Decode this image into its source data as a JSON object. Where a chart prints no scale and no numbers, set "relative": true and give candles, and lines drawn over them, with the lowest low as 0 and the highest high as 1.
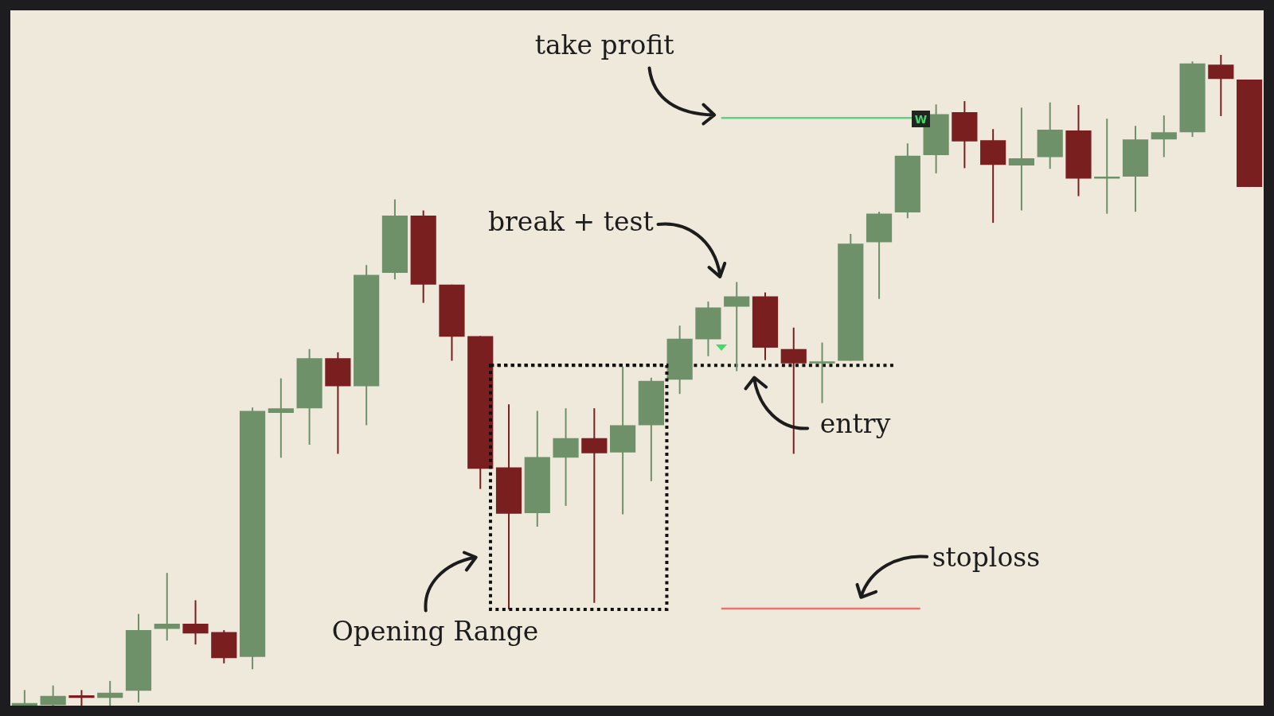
{
  "chart_data": {
    "type": "candlestick",
    "relative": true,
    "categories": [
      null,
      null,
      null,
      null,
      null,
      null,
      null,
      null,
      null,
      null,
      null,
      null,
      null,
      null,
      null,
      null,
      null,
      null,
      null,
      null,
      null,
      null,
      null,
      null,
      null,
      null,
      null,
      null,
      null,
      null,
      null,
      null,
      null,
      null,
      null,
      null,
      null,
      null,
      null,
      null,
      null,
      null,
      null,
      null
    ],
    "ohlc": [
      [
        0,
        0.024,
        0,
        0.004
      ],
      [
        0.001,
        0.031,
        0,
        0.015
      ],
      [
        0.016,
        0.024,
        0,
        0.012
      ],
      [
        0.012,
        0.038,
        0,
        0.02
      ],
      [
        0.023,
        0.141,
        0.005,
        0.116
      ],
      [
        0.118,
        0.204,
        0.1,
        0.126
      ],
      [
        0.126,
        0.162,
        0.094,
        0.111
      ],
      [
        0.113,
        0.116,
        0.065,
        0.073
      ],
      [
        0.075,
        0.458,
        0.056,
        0.453
      ],
      [
        0.45,
        0.503,
        0.381,
        0.457
      ],
      [
        0.457,
        0.548,
        0.401,
        0.534
      ],
      [
        0.534,
        0.543,
        0.387,
        0.491
      ],
      [
        0.491,
        0.677,
        0.431,
        0.662
      ],
      [
        0.665,
        0.778,
        0.655,
        0.753
      ],
      [
        0.753,
        0.761,
        0.619,
        0.647
      ],
      [
        0.647,
        0.647,
        0.53,
        0.567
      ],
      [
        0.568,
        0.568,
        0.333,
        0.364
      ],
      [
        0.366,
        0.463,
        0.148,
        0.295
      ],
      [
        0.296,
        0.453,
        0.275,
        0.382
      ],
      [
        0.381,
        0.457,
        0.307,
        0.411
      ],
      [
        0.411,
        0.457,
        0.158,
        0.388
      ],
      [
        0.389,
        0.521,
        0.294,
        0.431
      ],
      [
        0.431,
        0.504,
        0.345,
        0.499
      ],
      [
        0.501,
        0.584,
        0.479,
        0.564
      ],
      [
        0.563,
        0.621,
        0.537,
        0.612
      ],
      [
        0.613,
        0.651,
        0.514,
        0.629
      ],
      [
        0.629,
        0.635,
        0.531,
        0.55
      ],
      [
        0.548,
        0.581,
        0.387,
        0.526
      ],
      [
        0.526,
        0.558,
        0.465,
        0.529
      ],
      [
        0.53,
        0.725,
        0.53,
        0.71
      ],
      [
        0.712,
        0.759,
        0.625,
        0.756
      ],
      [
        0.758,
        0.864,
        0.749,
        0.845
      ],
      [
        0.846,
        0.924,
        0.818,
        0.909
      ],
      [
        0.912,
        0.929,
        0.826,
        0.867
      ],
      [
        0.869,
        0.886,
        0.742,
        0.831
      ],
      [
        0.83,
        0.919,
        0.761,
        0.841
      ],
      [
        0.843,
        0.927,
        0.825,
        0.885
      ],
      [
        0.884,
        0.923,
        0.783,
        0.81
      ],
      [
        0.81,
        0.902,
        0.756,
        0.813
      ],
      [
        0.813,
        0.891,
        0.759,
        0.87
      ],
      [
        0.87,
        0.907,
        0.843,
        0.881
      ],
      [
        0.881,
        0.99,
        0.874,
        0.987
      ],
      [
        0.985,
        1.0,
        0.906,
        0.963
      ],
      [
        0.962,
        0.962,
        0.797,
        0.797
      ]
    ],
    "colors": [
      "#6e9169",
      "#6e9169",
      "#7a1f1f",
      "#6e9169",
      "#6e9169",
      "#6e9169",
      "#7a1f1f",
      "#7a1f1f",
      "#6e9169",
      "#6e9169",
      "#6e9169",
      "#7a1f1f",
      "#6e9169",
      "#6e9169",
      "#7a1f1f",
      "#7a1f1f",
      "#7a1f1f",
      "#7a1f1f",
      "#6e9169",
      "#6e9169",
      "#7a1f1f",
      "#6e9169",
      "#6e9169",
      "#6e9169",
      "#6e9169",
      "#6e9169",
      "#7a1f1f",
      "#7a1f1f",
      "#6e9169",
      "#6e9169",
      "#6e9169",
      "#6e9169",
      "#6e9169",
      "#7a1f1f",
      "#7a1f1f",
      "#6e9169",
      "#6e9169",
      "#7a1f1f",
      "#6e9169",
      "#6e9169",
      "#6e9169",
      "#6e9169",
      "#7a1f1f",
      "#7a1f1f"
    ],
    "ref_lines": [
      {
        "axis": "y",
        "value": 0.903,
        "color": "#55d882"
      },
      {
        "axis": "y",
        "value": 0.523,
        "label": "entry",
        "color": "#111111",
        "line_style": "dotted"
      },
      {
        "axis": "y",
        "value": 0.149,
        "label": "stoploss",
        "color": "#eb736e"
      }
    ],
    "annotations": [
      "take profit",
      "break + test",
      "W",
      "Opening Range"
    ]
  }
}
